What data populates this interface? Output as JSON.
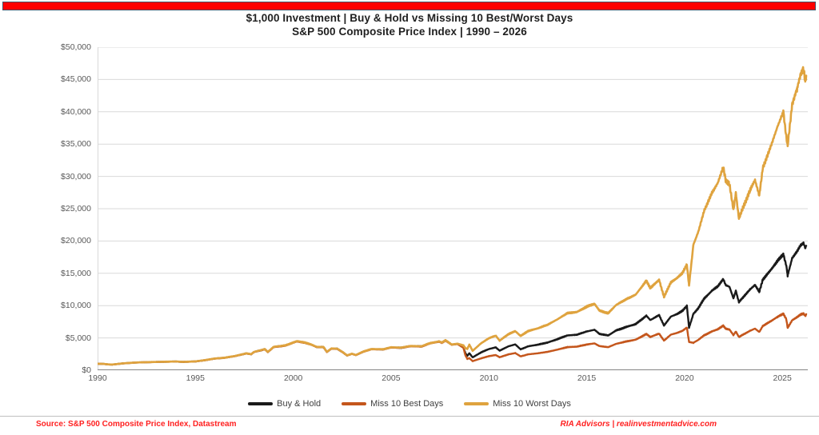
{
  "page": {
    "background": "#FFFFFF",
    "top_bar_color": "#FE0000",
    "top_bar_border": "#44546A",
    "grid_color": "#D9D9D9",
    "axis_color": "#8C8C8C",
    "divider_color": "#BFBFBF"
  },
  "footer": {
    "source": "Source: S&P 500 Composite Price Index, Datastream",
    "brand": "RIA Advisors  |  realinvestmentadvice.com",
    "text_color": "#FF2020"
  },
  "chart_data": {
    "type": "line",
    "title": "$1,000 Investment  |  Buy & Hold vs Missing 10 Best/Worst Days",
    "subtitle": "S&P 500 Composite Price Index  |  1990 – 2026",
    "xlim": [
      1990,
      2026.3
    ],
    "ylim": [
      0,
      50000
    ],
    "grid": true,
    "legend_position": "bottom-center",
    "y_ticks": [
      {
        "value": 0,
        "label": "$0"
      },
      {
        "value": 5000,
        "label": "$5,000"
      },
      {
        "value": 10000,
        "label": "$10,000"
      },
      {
        "value": 15000,
        "label": "$15,000"
      },
      {
        "value": 20000,
        "label": "$20,000"
      },
      {
        "value": 25000,
        "label": "$25,000"
      },
      {
        "value": 30000,
        "label": "$30,000"
      },
      {
        "value": 35000,
        "label": "$35,000"
      },
      {
        "value": 40000,
        "label": "$40,000"
      },
      {
        "value": 45000,
        "label": "$45,000"
      },
      {
        "value": 50000,
        "label": "$50,000"
      }
    ],
    "x_ticks": [
      {
        "value": 1990,
        "label": "1990"
      },
      {
        "value": 1995,
        "label": "1995"
      },
      {
        "value": 2000,
        "label": "2000"
      },
      {
        "value": 2005,
        "label": "2005"
      },
      {
        "value": 2010,
        "label": "2010"
      },
      {
        "value": 2015,
        "label": "2015"
      },
      {
        "value": 2020,
        "label": "2020"
      },
      {
        "value": 2025,
        "label": "2025"
      }
    ],
    "x": [
      1990.0,
      1990.3,
      1990.55,
      1990.75,
      1991.0,
      1991.3,
      1992.0,
      1993.0,
      1994.0,
      1994.35,
      1995.0,
      1995.5,
      1996.0,
      1996.5,
      1997.0,
      1997.6,
      1997.85,
      1998.0,
      1998.55,
      1998.7,
      1999.0,
      1999.6,
      2000.2,
      2000.6,
      2000.9,
      2001.2,
      2001.55,
      2001.72,
      2001.95,
      2002.25,
      2002.55,
      2002.75,
      2003.0,
      2003.2,
      2003.6,
      2004.0,
      2004.6,
      2005.0,
      2005.5,
      2006.0,
      2006.55,
      2007.0,
      2007.45,
      2007.6,
      2007.78,
      2008.1,
      2008.4,
      2008.7,
      2008.8,
      2008.9,
      2009.0,
      2009.17,
      2009.6,
      2010.0,
      2010.35,
      2010.55,
      2011.0,
      2011.35,
      2011.62,
      2011.8,
      2012.0,
      2012.5,
      2013.0,
      2013.5,
      2014.0,
      2014.5,
      2015.0,
      2015.4,
      2015.65,
      2016.1,
      2016.5,
      2017.0,
      2017.5,
      2018.05,
      2018.25,
      2018.7,
      2018.95,
      2019.3,
      2019.6,
      2019.9,
      2020.12,
      2020.23,
      2020.45,
      2020.7,
      2021.0,
      2021.4,
      2021.7,
      2021.98,
      2022.1,
      2022.3,
      2022.5,
      2022.62,
      2022.78,
      2023.0,
      2023.35,
      2023.6,
      2023.82,
      2024.0,
      2024.4,
      2024.75,
      2025.05,
      2025.2,
      2025.27,
      2025.5,
      2025.75,
      2025.95,
      2026.08,
      2026.17,
      2026.22
    ],
    "series": [
      {
        "name": "Buy & Hold",
        "color": "#1A1A1A",
        "stroke_width": 2.4,
        "values": [
          1000,
          980,
          900,
          880,
          960,
          1060,
          1200,
          1280,
          1350,
          1290,
          1360,
          1560,
          1810,
          1930,
          2180,
          2600,
          2480,
          2830,
          3250,
          2820,
          3600,
          3830,
          4490,
          4250,
          3990,
          3600,
          3570,
          2840,
          3350,
          3320,
          2750,
          2290,
          2540,
          2350,
          2900,
          3260,
          3230,
          3530,
          3480,
          3740,
          3690,
          4180,
          4440,
          4280,
          4600,
          3960,
          4080,
          3500,
          2640,
          2210,
          2640,
          1990,
          2760,
          3280,
          3540,
          3030,
          3700,
          4000,
          3240,
          3440,
          3700,
          3950,
          4290,
          4800,
          5380,
          5500,
          6000,
          6260,
          5630,
          5380,
          6150,
          6680,
          7130,
          8440,
          7760,
          8530,
          6910,
          8300,
          8680,
          9200,
          9970,
          6580,
          8700,
          9600,
          11060,
          12300,
          13000,
          14100,
          13200,
          12900,
          11100,
          12300,
          10530,
          11320,
          12500,
          13200,
          12120,
          14030,
          15500,
          16900,
          17940,
          16200,
          14650,
          17350,
          18400,
          19400,
          19700,
          18900,
          19300
        ]
      },
      {
        "name": "Miss 10 Best Days",
        "color": "#C4561C",
        "stroke_width": 2.4,
        "values": [
          1000,
          975,
          895,
          875,
          955,
          1055,
          1195,
          1275,
          1343,
          1283,
          1353,
          1552,
          1800,
          1920,
          2168,
          2586,
          2466,
          2814,
          3232,
          2804,
          3580,
          3809,
          4465,
          4226,
          3968,
          3580,
          3550,
          2824,
          3331,
          3302,
          2735,
          2277,
          2526,
          2337,
          2884,
          3242,
          3212,
          3510,
          3461,
          3719,
          3670,
          4157,
          4415,
          4256,
          4574,
          3938,
          4057,
          3480,
          2300,
          1750,
          1870,
          1410,
          1830,
          2180,
          2350,
          2010,
          2455,
          2655,
          2150,
          2283,
          2455,
          2621,
          2847,
          3185,
          3570,
          3650,
          3982,
          4154,
          3736,
          3570,
          4081,
          4433,
          4731,
          5600,
          5149,
          5660,
          4585,
          5508,
          5760,
          6105,
          6616,
          4370,
          4249,
          4688,
          5400,
          6006,
          6348,
          6885,
          6446,
          6299,
          5420,
          6006,
          5142,
          5527,
          6104,
          6446,
          5918,
          6851,
          7568,
          8252,
          8760,
          7910,
          6532,
          7735,
          8203,
          8649,
          8783,
          8426,
          8605
        ]
      },
      {
        "name": "Miss 10 Worst Days",
        "color": "#DFA33E",
        "stroke_width": 2.6,
        "values": [
          1005,
          985,
          905,
          885,
          965,
          1065,
          1205,
          1287,
          1357,
          1297,
          1368,
          1569,
          1820,
          1941,
          2192,
          2615,
          2494,
          2846,
          3268,
          2836,
          3620,
          3852,
          4515,
          4274,
          4012,
          3620,
          3590,
          2856,
          3369,
          3339,
          2765,
          2303,
          2554,
          2363,
          2916,
          3278,
          3248,
          3550,
          3499,
          3761,
          3710,
          4203,
          4465,
          4304,
          4626,
          3982,
          4103,
          3840,
          3420,
          3300,
          3960,
          3000,
          4170,
          4950,
          5350,
          4580,
          5590,
          6040,
          5310,
          5640,
          6070,
          6480,
          7040,
          7870,
          8820,
          9020,
          9840,
          10270,
          9230,
          8820,
          10090,
          10960,
          11690,
          13840,
          12730,
          13990,
          11330,
          13610,
          14240,
          15090,
          16350,
          13100,
          19400,
          21400,
          24660,
          27430,
          28990,
          31440,
          29440,
          28770,
          24750,
          27430,
          23480,
          25240,
          27880,
          29440,
          27030,
          31290,
          34570,
          37690,
          40010,
          36130,
          34720,
          41120,
          43610,
          45980,
          46690,
          44790,
          45740
        ]
      }
    ]
  }
}
